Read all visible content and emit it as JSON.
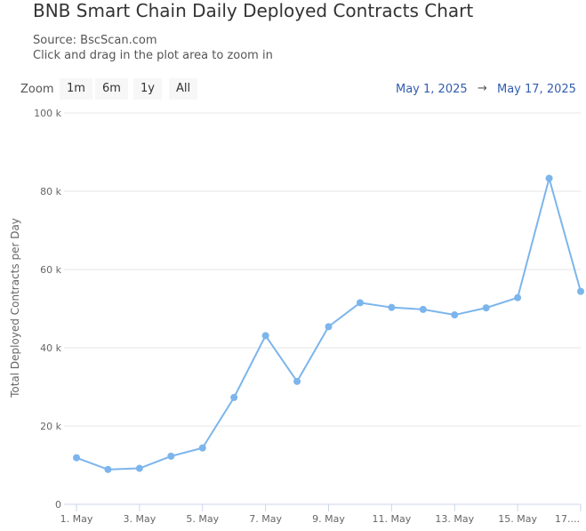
{
  "title": "BNB Smart Chain Daily Deployed Contracts Chart",
  "source": "Source: BscScan.com",
  "hint": "Click and drag in the plot area to zoom in",
  "zoom": {
    "label": "Zoom",
    "buttons": [
      "1m",
      "6m",
      "1y",
      "All"
    ]
  },
  "range": {
    "from": "May 1, 2025",
    "arrow": "→",
    "to": "May 17, 2025"
  },
  "colors": {
    "series": "#7cb5ec",
    "grid": "#e6e6e6",
    "range": "#335cad"
  },
  "chart_data": {
    "type": "line",
    "ylabel": "Total Deployed Contracts per Day",
    "ylim": [
      0,
      100000
    ],
    "yticks": [
      0,
      20000,
      40000,
      60000,
      80000,
      100000
    ],
    "ytick_labels": [
      "0",
      "20 k",
      "40 k",
      "60 k",
      "80 k",
      "100 k"
    ],
    "xtick_labels": [
      "1. May",
      "3. May",
      "5. May",
      "7. May",
      "9. May",
      "11. May",
      "13. May",
      "15. May",
      "17...."
    ],
    "xtick_days": [
      1,
      3,
      5,
      7,
      9,
      11,
      13,
      15,
      17
    ],
    "grid": true,
    "series": [
      {
        "x": [
          "2025-05-01",
          "2025-05-02",
          "2025-05-03",
          "2025-05-04",
          "2025-05-05",
          "2025-05-06",
          "2025-05-07",
          "2025-05-08",
          "2025-05-09",
          "2025-05-10",
          "2025-05-11",
          "2025-05-12",
          "2025-05-13",
          "2025-05-14",
          "2025-05-15",
          "2025-05-16",
          "2025-05-17"
        ],
        "values": [
          11900,
          8900,
          9200,
          12300,
          14400,
          27300,
          43100,
          31400,
          45400,
          51500,
          50300,
          49800,
          48400,
          50200,
          52800,
          83300,
          54400
        ]
      }
    ]
  }
}
